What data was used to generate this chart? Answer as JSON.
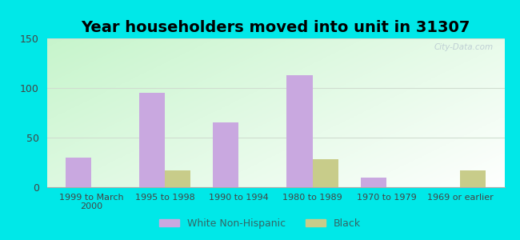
{
  "title": "Year householders moved into unit in 31307",
  "categories": [
    "1999 to March\n2000",
    "1995 to 1998",
    "1990 to 1994",
    "1980 to 1989",
    "1970 to 1979",
    "1969 or earlier"
  ],
  "white_values": [
    30,
    95,
    65,
    113,
    10,
    0
  ],
  "black_values": [
    0,
    17,
    0,
    28,
    0,
    17
  ],
  "white_color": "#c9a8e0",
  "black_color": "#c8cc8a",
  "ylim": [
    0,
    150
  ],
  "yticks": [
    0,
    50,
    100,
    150
  ],
  "outer_bg": "#00e8e8",
  "bar_width": 0.35,
  "title_fontsize": 14,
  "legend_labels": [
    "White Non-Hispanic",
    "Black"
  ],
  "watermark": "City-Data.com",
  "grid_color": "#d0ddd0",
  "bottom_spine_color": "#aaaaaa"
}
